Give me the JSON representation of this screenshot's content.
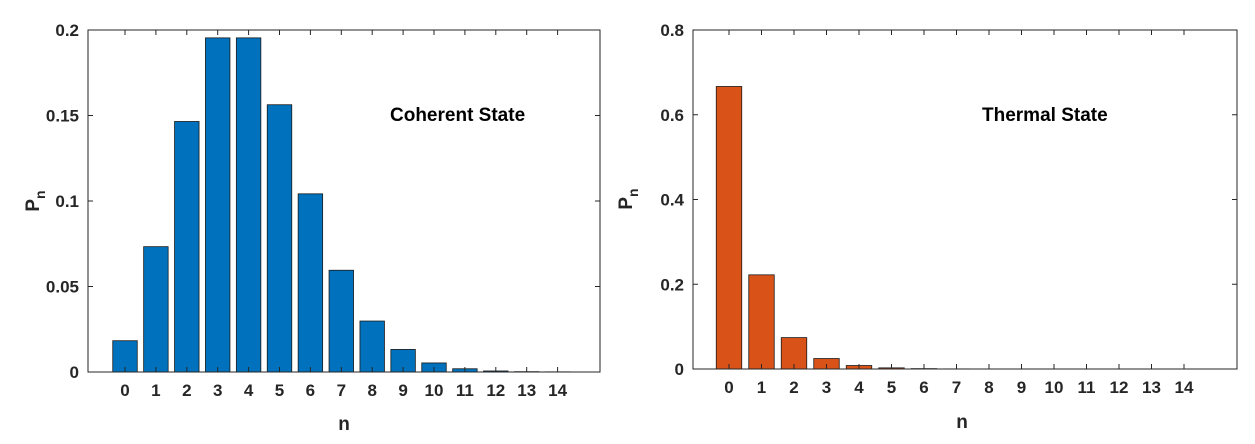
{
  "chart_data": [
    {
      "type": "bar",
      "categories": [
        "0",
        "1",
        "2",
        "3",
        "4",
        "5",
        "6",
        "7",
        "8",
        "9",
        "10",
        "11",
        "12",
        "13",
        "14"
      ],
      "values": [
        0.0183,
        0.0733,
        0.1465,
        0.1954,
        0.1954,
        0.1563,
        0.1042,
        0.0595,
        0.0298,
        0.0132,
        0.0053,
        0.0019,
        0.0006,
        0.0002,
        0.0001
      ],
      "xlabel": "n",
      "ylabel": "P",
      "ylabel_subscript": "n",
      "ylim": [
        0,
        0.2
      ],
      "yticks": [
        0,
        0.05,
        0.1,
        0.15,
        0.2
      ],
      "ytick_labels": [
        "0",
        "0.05",
        "0.1",
        "0.15",
        "0.2"
      ],
      "annotation": "Coherent State",
      "bar_color": "#0072BD",
      "grid": false
    },
    {
      "type": "bar",
      "categories": [
        "0",
        "1",
        "2",
        "3",
        "4",
        "5",
        "6",
        "7",
        "8",
        "9",
        "10",
        "11",
        "12",
        "13",
        "14"
      ],
      "values": [
        0.6667,
        0.2222,
        0.0741,
        0.0247,
        0.0082,
        0.0027,
        0.0009,
        0.0003,
        0.0001,
        3e-05,
        1e-05,
        4e-06,
        1e-06,
        5e-07,
        2e-07
      ],
      "xlabel": "n",
      "ylabel": "P",
      "ylabel_subscript": "n",
      "ylim": [
        0,
        0.8
      ],
      "yticks": [
        0,
        0.2,
        0.4,
        0.6,
        0.8
      ],
      "ytick_labels": [
        "0",
        "0.2",
        "0.4",
        "0.6",
        "0.8"
      ],
      "annotation": "Thermal State",
      "bar_color": "#D95319",
      "grid": false
    }
  ]
}
